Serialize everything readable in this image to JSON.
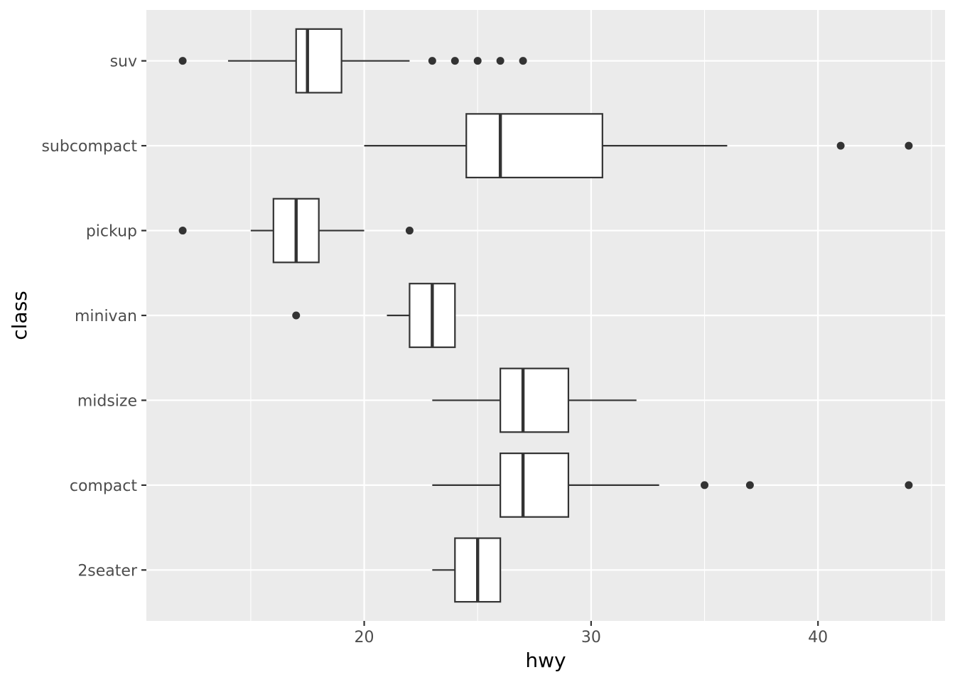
{
  "chart_data": {
    "type": "boxplot",
    "orientation": "horizontal",
    "xlabel": "hwy",
    "ylabel": "class",
    "xlim": [
      10.4,
      45.6
    ],
    "x_ticks": [
      20,
      30,
      40
    ],
    "grid": true,
    "categories": [
      "2seater",
      "compact",
      "midsize",
      "minivan",
      "pickup",
      "subcompact",
      "suv"
    ],
    "boxes": [
      {
        "category": "2seater",
        "whisker_low": 23,
        "q1": 24,
        "median": 25,
        "q3": 26,
        "whisker_high": 26,
        "outliers": []
      },
      {
        "category": "compact",
        "whisker_low": 23,
        "q1": 26,
        "median": 27,
        "q3": 29,
        "whisker_high": 33,
        "outliers": [
          35,
          37,
          44
        ]
      },
      {
        "category": "midsize",
        "whisker_low": 23,
        "q1": 26,
        "median": 27,
        "q3": 29,
        "whisker_high": 32,
        "outliers": []
      },
      {
        "category": "minivan",
        "whisker_low": 21,
        "q1": 22,
        "median": 23,
        "q3": 24,
        "whisker_high": 24,
        "outliers": [
          17
        ]
      },
      {
        "category": "pickup",
        "whisker_low": 15,
        "q1": 16,
        "median": 17,
        "q3": 18,
        "whisker_high": 20,
        "outliers": [
          12,
          22
        ]
      },
      {
        "category": "subcompact",
        "whisker_low": 20,
        "q1": 24.5,
        "median": 26,
        "q3": 30.5,
        "whisker_high": 36,
        "outliers": [
          41,
          44
        ]
      },
      {
        "category": "suv",
        "whisker_low": 14,
        "q1": 17,
        "median": 17.5,
        "q3": 19,
        "whisker_high": 22,
        "outliers": [
          12,
          23,
          24,
          25,
          26,
          27
        ]
      }
    ],
    "colors": {
      "panel": "#ebebeb",
      "grid": "#ffffff",
      "box_fill": "#ffffff",
      "box_stroke": "#333333",
      "outlier": "#333333",
      "tick_label": "#4d4d4d",
      "axis_title": "#000000"
    }
  }
}
